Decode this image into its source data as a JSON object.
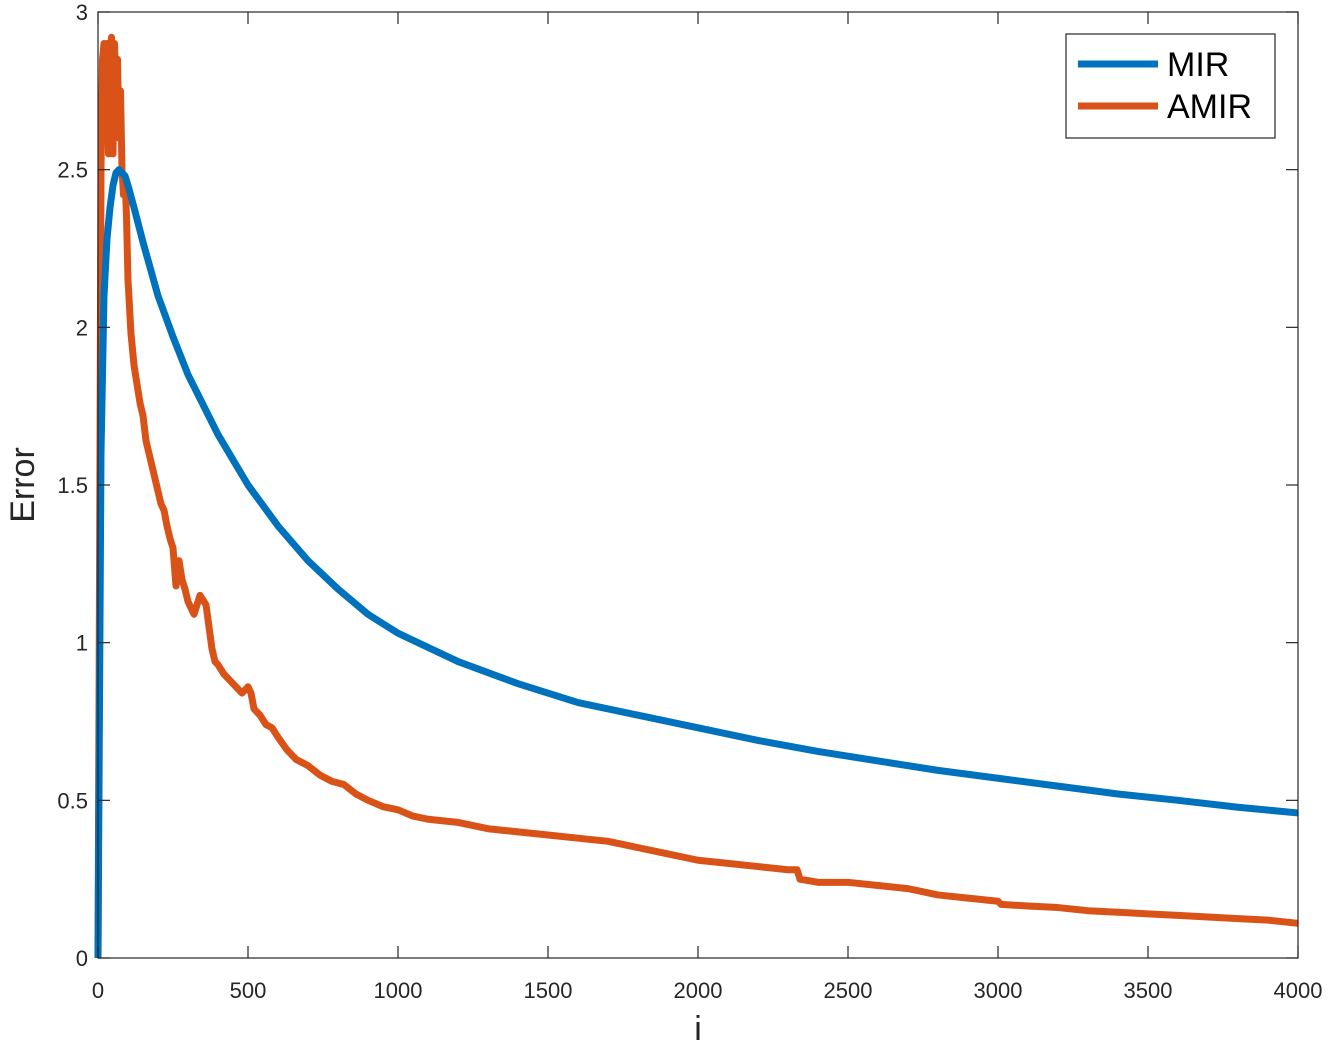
{
  "chart_data": {
    "type": "line",
    "title": "",
    "xlabel": "i",
    "ylabel": "Error",
    "xlim": [
      0,
      4000
    ],
    "ylim": [
      0,
      3
    ],
    "xticks": [
      0,
      500,
      1000,
      1500,
      2000,
      2500,
      3000,
      3500,
      4000
    ],
    "xtick_labels": [
      "0",
      "500",
      "1000",
      "1500",
      "2000",
      "2500",
      "3000",
      "3500",
      "4000"
    ],
    "yticks": [
      0,
      0.5,
      1,
      1.5,
      2,
      2.5,
      3
    ],
    "ytick_labels": [
      "0",
      "0.5",
      "1",
      "1.5",
      "2",
      "2.5",
      "3"
    ],
    "grid": false,
    "legend_position": "top-right",
    "series": [
      {
        "name": "MIR",
        "color": "#0072BD",
        "x": [
          0,
          10,
          20,
          30,
          40,
          50,
          60,
          70,
          80,
          90,
          100,
          120,
          150,
          200,
          250,
          300,
          400,
          500,
          600,
          700,
          800,
          900,
          1000,
          1200,
          1400,
          1600,
          1800,
          2000,
          2200,
          2400,
          2600,
          2800,
          3000,
          3200,
          3400,
          3600,
          3800,
          4000
        ],
        "values": [
          0,
          1.6,
          2.1,
          2.28,
          2.38,
          2.45,
          2.49,
          2.5,
          2.49,
          2.48,
          2.45,
          2.38,
          2.27,
          2.1,
          1.97,
          1.85,
          1.66,
          1.5,
          1.37,
          1.26,
          1.17,
          1.09,
          1.03,
          0.94,
          0.87,
          0.81,
          0.77,
          0.73,
          0.69,
          0.655,
          0.625,
          0.595,
          0.57,
          0.545,
          0.52,
          0.5,
          0.478,
          0.46
        ]
      },
      {
        "name": "AMIR",
        "color": "#D95319",
        "x": [
          0,
          5,
          10,
          15,
          20,
          25,
          30,
          35,
          40,
          45,
          50,
          55,
          60,
          65,
          70,
          75,
          80,
          85,
          90,
          95,
          100,
          110,
          120,
          130,
          140,
          150,
          160,
          170,
          180,
          190,
          200,
          210,
          220,
          230,
          240,
          250,
          260,
          270,
          280,
          290,
          300,
          320,
          340,
          360,
          370,
          380,
          390,
          400,
          420,
          440,
          460,
          480,
          500,
          510,
          520,
          540,
          560,
          580,
          600,
          630,
          660,
          700,
          740,
          780,
          820,
          860,
          900,
          950,
          1000,
          1050,
          1100,
          1200,
          1300,
          1400,
          1500,
          1600,
          1700,
          1800,
          1900,
          2000,
          2100,
          2200,
          2300,
          2330,
          2340,
          2400,
          2500,
          2600,
          2700,
          2800,
          2900,
          3000,
          3010,
          3100,
          3200,
          3300,
          3400,
          3500,
          3600,
          3700,
          3800,
          3900,
          4000
        ],
        "values": [
          0,
          1.2,
          2.5,
          2.85,
          2.9,
          2.6,
          2.9,
          2.55,
          2.85,
          2.92,
          2.55,
          2.9,
          2.7,
          2.85,
          2.6,
          2.75,
          2.5,
          2.42,
          2.48,
          2.35,
          2.15,
          1.98,
          1.88,
          1.82,
          1.76,
          1.72,
          1.64,
          1.6,
          1.56,
          1.52,
          1.48,
          1.44,
          1.42,
          1.37,
          1.33,
          1.3,
          1.18,
          1.26,
          1.2,
          1.17,
          1.13,
          1.09,
          1.15,
          1.12,
          1.05,
          0.98,
          0.94,
          0.93,
          0.9,
          0.88,
          0.86,
          0.84,
          0.86,
          0.84,
          0.79,
          0.77,
          0.74,
          0.73,
          0.7,
          0.66,
          0.63,
          0.61,
          0.58,
          0.56,
          0.55,
          0.52,
          0.5,
          0.48,
          0.47,
          0.45,
          0.44,
          0.43,
          0.41,
          0.4,
          0.39,
          0.38,
          0.37,
          0.35,
          0.33,
          0.31,
          0.3,
          0.29,
          0.28,
          0.28,
          0.25,
          0.24,
          0.24,
          0.23,
          0.22,
          0.2,
          0.19,
          0.18,
          0.17,
          0.165,
          0.16,
          0.15,
          0.145,
          0.14,
          0.135,
          0.13,
          0.125,
          0.12,
          0.11
        ]
      }
    ]
  }
}
